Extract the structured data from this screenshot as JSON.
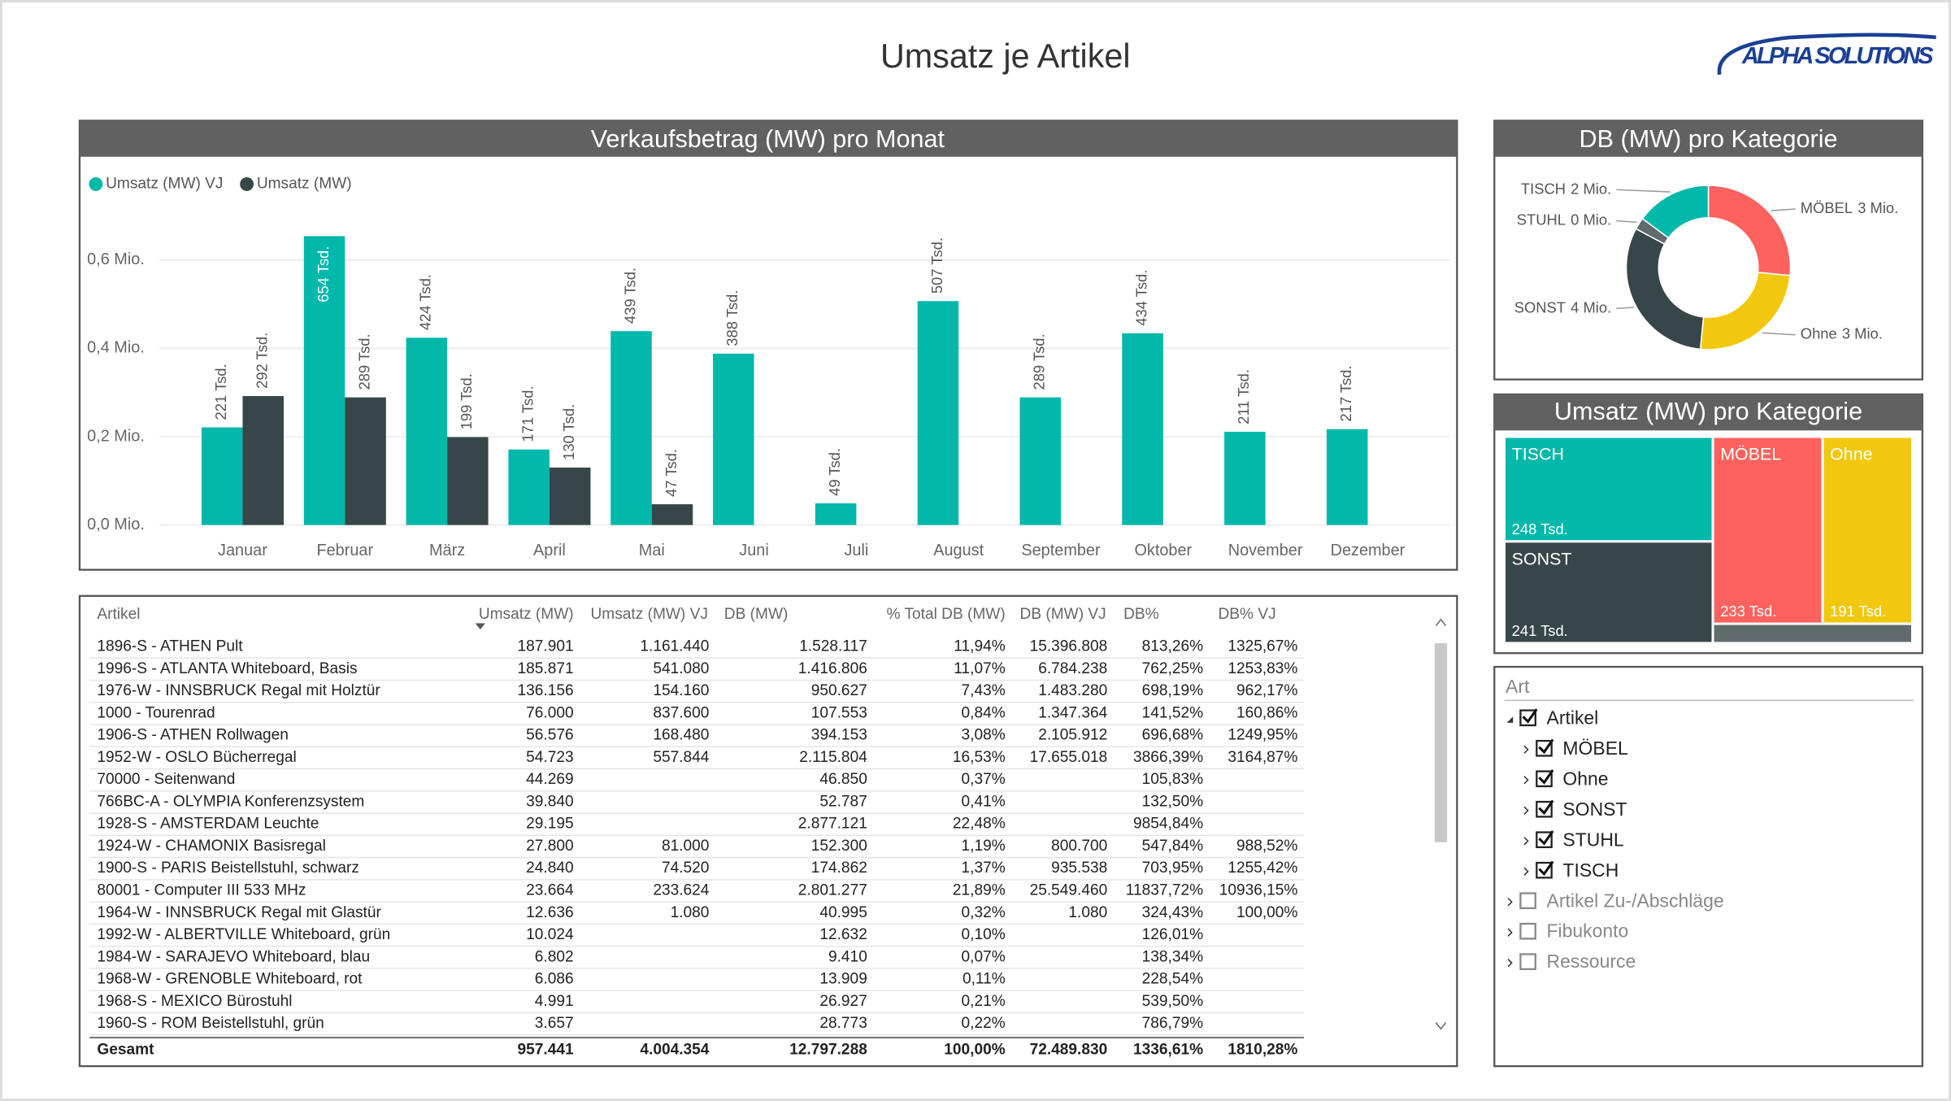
{
  "header": {
    "title": "Umsatz je Artikel",
    "logo": "ALPHA SOLUTIONS"
  },
  "chart_data": [
    {
      "type": "bar",
      "title": "Verkaufsbetrag (MW) pro Monat",
      "categories": [
        "Januar",
        "Februar",
        "März",
        "April",
        "Mai",
        "Juni",
        "Juli",
        "August",
        "September",
        "Oktober",
        "November",
        "Dezember"
      ],
      "series": [
        {
          "name": "Umsatz (MW) VJ",
          "color": "#01b8aa",
          "values": [
            0.221,
            0.654,
            0.424,
            0.171,
            0.439,
            0.388,
            0.049,
            0.507,
            0.289,
            0.434,
            0.211,
            0.217
          ],
          "value_labels": [
            "221 Tsd.",
            "654 Tsd.",
            "424 Tsd.",
            "171 Tsd.",
            "439 Tsd.",
            "388 Tsd.",
            "49 Tsd.",
            "507 Tsd.",
            "289 Tsd.",
            "434 Tsd.",
            "211 Tsd.",
            "217 Tsd."
          ]
        },
        {
          "name": "Umsatz (MW)",
          "color": "#374649",
          "values": [
            0.292,
            0.289,
            0.199,
            0.13,
            0.047,
            null,
            null,
            null,
            null,
            null,
            null,
            null
          ],
          "value_labels": [
            "292 Tsd.",
            "289 Tsd.",
            "199 Tsd.",
            "130 Tsd.",
            "47 Tsd.",
            null,
            null,
            null,
            null,
            null,
            null,
            null
          ]
        }
      ],
      "ylim": [
        0,
        0.7
      ],
      "yticks": [
        {
          "value": 0,
          "label": "0,0 Mio."
        },
        {
          "value": 0.2,
          "label": "0,2 Mio."
        },
        {
          "value": 0.4,
          "label": "0,4 Mio."
        },
        {
          "value": 0.6,
          "label": "0,6 Mio."
        }
      ],
      "grid": true,
      "legend": "top-left"
    },
    {
      "type": "donut",
      "title": "DB (MW) pro Kategorie",
      "categories": [
        "MÖBEL",
        "Ohne",
        "SONST",
        "STUHL",
        "TISCH"
      ],
      "values": [
        3.4,
        3.2,
        4,
        0.3,
        1.9
      ],
      "value_labels": [
        "3 Mio.",
        "3 Mio.",
        "4 Mio.",
        "0 Mio.",
        "2 Mio."
      ],
      "colors": [
        "#fd625e",
        "#f2c80f",
        "#374649",
        "#5f6b6d",
        "#01b8aa"
      ]
    },
    {
      "type": "treemap",
      "title": "Umsatz (MW) pro Kategorie",
      "categories": [
        "TISCH",
        "SONST",
        "MÖBEL",
        "Ohne",
        null
      ],
      "values": [
        248,
        241,
        233,
        191,
        44
      ],
      "value_labels": [
        "248 Tsd.",
        "241 Tsd.",
        "233 Tsd.",
        "191 Tsd.",
        null
      ],
      "colors": [
        "#01b8aa",
        "#374649",
        "#fd625e",
        "#f2c80f",
        "#5f6b6d"
      ]
    }
  ],
  "table": {
    "columns": [
      "Artikel",
      "Umsatz (MW)",
      "Umsatz (MW) VJ",
      "DB (MW)",
      "% Total DB (MW)",
      "DB (MW) VJ",
      "DB%",
      "DB% VJ"
    ],
    "rows": [
      [
        "1896-S - ATHEN Pult",
        "187.901",
        "1.161.440",
        "1.528.117",
        "11,94%",
        "15.396.808",
        "813,26%",
        "1325,67%"
      ],
      [
        "1996-S - ATLANTA Whiteboard, Basis",
        "185.871",
        "541.080",
        "1.416.806",
        "11,07%",
        "6.784.238",
        "762,25%",
        "1253,83%"
      ],
      [
        "1976-W - INNSBRUCK Regal mit Holztür",
        "136.156",
        "154.160",
        "950.627",
        "7,43%",
        "1.483.280",
        "698,19%",
        "962,17%"
      ],
      [
        "1000 - Tourenrad",
        "76.000",
        "837.600",
        "107.553",
        "0,84%",
        "1.347.364",
        "141,52%",
        "160,86%"
      ],
      [
        "1906-S - ATHEN Rollwagen",
        "56.576",
        "168.480",
        "394.153",
        "3,08%",
        "2.105.912",
        "696,68%",
        "1249,95%"
      ],
      [
        "1952-W - OSLO Bücherregal",
        "54.723",
        "557.844",
        "2.115.804",
        "16,53%",
        "17.655.018",
        "3866,39%",
        "3164,87%"
      ],
      [
        "70000 - Seitenwand",
        "44.269",
        null,
        "46.850",
        "0,37%",
        null,
        "105,83%",
        null
      ],
      [
        "766BC-A - OLYMPIA Konferenzsystem",
        "39.840",
        null,
        "52.787",
        "0,41%",
        null,
        "132,50%",
        null
      ],
      [
        "1928-S - AMSTERDAM Leuchte",
        "29.195",
        null,
        "2.877.121",
        "22,48%",
        null,
        "9854,84%",
        null
      ],
      [
        "1924-W - CHAMONIX Basisregal",
        "27.800",
        "81.000",
        "152.300",
        "1,19%",
        "800.700",
        "547,84%",
        "988,52%"
      ],
      [
        "1900-S - PARIS Beistellstuhl, schwarz",
        "24.840",
        "74.520",
        "174.862",
        "1,37%",
        "935.538",
        "703,95%",
        "1255,42%"
      ],
      [
        "80001 - Computer III 533 MHz",
        "23.664",
        "233.624",
        "2.801.277",
        "21,89%",
        "25.549.460",
        "11837,72%",
        "10936,15%"
      ],
      [
        "1964-W - INNSBRUCK Regal mit Glastür",
        "12.636",
        "1.080",
        "40.995",
        "0,32%",
        "1.080",
        "324,43%",
        "100,00%"
      ],
      [
        "1992-W - ALBERTVILLE Whiteboard, grün",
        "10.024",
        null,
        "12.632",
        "0,10%",
        null,
        "126,01%",
        null
      ],
      [
        "1984-W - SARAJEVO Whiteboard, blau",
        "6.802",
        null,
        "9.410",
        "0,07%",
        null,
        "138,34%",
        null
      ],
      [
        "1968-W - GRENOBLE Whiteboard, rot",
        "6.086",
        null,
        "13.909",
        "0,11%",
        null,
        "228,54%",
        null
      ],
      [
        "1968-S - MEXICO Bürostuhl",
        "4.991",
        null,
        "26.927",
        "0,21%",
        null,
        "539,50%",
        null
      ],
      [
        "1960-S - ROM Beistellstuhl, grün",
        "3.657",
        null,
        "28.773",
        "0,22%",
        null,
        "786,79%",
        null
      ]
    ],
    "total": [
      "Gesamt",
      "957.441",
      "4.004.354",
      "12.797.288",
      "100,00%",
      "72.489.830",
      "1336,61%",
      "1810,28%"
    ]
  },
  "slicer": {
    "title": "Art",
    "items": [
      {
        "label": "Artikel",
        "checked": true,
        "children": [
          {
            "label": "MÖBEL",
            "checked": true
          },
          {
            "label": "Ohne",
            "checked": true
          },
          {
            "label": "SONST",
            "checked": true
          },
          {
            "label": "STUHL",
            "checked": true
          },
          {
            "label": "TISCH",
            "checked": true
          }
        ]
      },
      {
        "label": "Artikel Zu-/Abschläge",
        "checked": false
      },
      {
        "label": "Fibukonto",
        "checked": false
      },
      {
        "label": "Ressource",
        "checked": false
      }
    ]
  }
}
